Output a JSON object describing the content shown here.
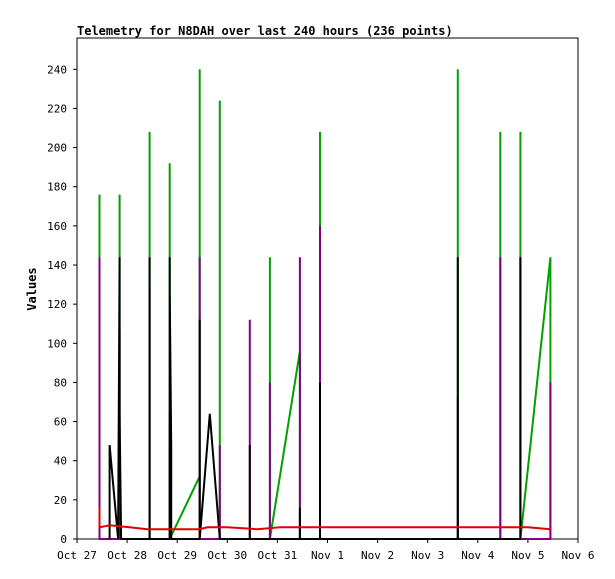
{
  "chart_data": {
    "type": "line",
    "title": "Telemetry for N8DAH over last 240 hours (236 points)",
    "xlabel": "",
    "ylabel": "Values",
    "ylim": [
      0,
      256
    ],
    "xlim": [
      0,
      10
    ],
    "yticks": [
      0,
      20,
      40,
      60,
      80,
      100,
      120,
      140,
      160,
      180,
      200,
      220,
      240
    ],
    "xticks": [
      {
        "label": "Oct 27",
        "x": 0
      },
      {
        "label": "Oct 28",
        "x": 1
      },
      {
        "label": "Oct 29",
        "x": 2
      },
      {
        "label": "Oct 30",
        "x": 3
      },
      {
        "label": "Oct 31",
        "x": 4
      },
      {
        "label": "Nov 1",
        "x": 5
      },
      {
        "label": "Nov 2",
        "x": 6
      },
      {
        "label": "Nov 3",
        "x": 7
      },
      {
        "label": "Nov 4",
        "x": 8
      },
      {
        "label": "Nov 5",
        "x": 9
      },
      {
        "label": "Nov 6",
        "x": 10
      }
    ],
    "grid": false,
    "legend": "none",
    "series": [
      {
        "color": "#00a000",
        "points": [
          [
            0.45,
            0
          ],
          [
            0.45,
            176
          ],
          [
            0.45,
            0
          ],
          [
            0.85,
            0
          ],
          [
            0.85,
            96
          ],
          [
            0.85,
            176
          ],
          [
            0.85,
            0
          ],
          [
            1.45,
            0
          ],
          [
            1.45,
            208
          ],
          [
            1.45,
            0
          ],
          [
            1.85,
            0
          ],
          [
            1.85,
            192
          ],
          [
            1.85,
            0
          ],
          [
            2.45,
            32
          ],
          [
            2.45,
            240
          ],
          [
            2.45,
            0
          ],
          [
            2.85,
            0
          ],
          [
            2.85,
            224
          ],
          [
            2.85,
            0
          ],
          [
            3.85,
            0
          ],
          [
            3.85,
            144
          ],
          [
            3.85,
            0
          ],
          [
            4.45,
            96
          ],
          [
            4.45,
            0
          ],
          [
            4.85,
            0
          ],
          [
            4.85,
            208
          ],
          [
            4.85,
            0
          ],
          [
            7.6,
            0
          ],
          [
            7.6,
            240
          ],
          [
            7.6,
            0
          ],
          [
            8.45,
            0
          ],
          [
            8.45,
            208
          ],
          [
            8.45,
            0
          ],
          [
            8.85,
            0
          ],
          [
            8.85,
            208
          ],
          [
            8.85,
            0
          ],
          [
            9.45,
            144
          ],
          [
            9.45,
            0
          ]
        ]
      },
      {
        "color": "#800080",
        "points": [
          [
            0.45,
            0
          ],
          [
            0.45,
            144
          ],
          [
            0.45,
            0
          ],
          [
            0.85,
            0
          ],
          [
            0.85,
            106
          ],
          [
            0.85,
            0
          ],
          [
            1.45,
            0
          ],
          [
            1.45,
            128
          ],
          [
            1.45,
            0
          ],
          [
            1.85,
            0
          ],
          [
            1.85,
            64
          ],
          [
            1.85,
            0
          ],
          [
            2.45,
            0
          ],
          [
            2.45,
            144
          ],
          [
            2.45,
            0
          ],
          [
            2.85,
            0
          ],
          [
            2.85,
            48
          ],
          [
            2.85,
            0
          ],
          [
            3.45,
            0
          ],
          [
            3.45,
            112
          ],
          [
            3.45,
            0
          ],
          [
            3.85,
            0
          ],
          [
            3.85,
            80
          ],
          [
            3.85,
            0
          ],
          [
            4.45,
            0
          ],
          [
            4.45,
            144
          ],
          [
            4.45,
            0
          ],
          [
            4.85,
            0
          ],
          [
            4.85,
            160
          ],
          [
            4.85,
            0
          ],
          [
            7.6,
            0
          ],
          [
            7.6,
            72
          ],
          [
            7.6,
            0
          ],
          [
            8.45,
            0
          ],
          [
            8.45,
            144
          ],
          [
            8.45,
            0
          ],
          [
            8.85,
            0
          ],
          [
            8.85,
            144
          ],
          [
            8.85,
            0
          ],
          [
            9.45,
            0
          ],
          [
            9.45,
            32
          ],
          [
            9.45,
            80
          ],
          [
            9.45,
            0
          ]
        ]
      },
      {
        "color": "#000000",
        "points": [
          [
            0.65,
            0
          ],
          [
            0.65,
            48
          ],
          [
            0.82,
            0
          ],
          [
            0.85,
            144
          ],
          [
            0.85,
            64
          ],
          [
            0.88,
            0
          ],
          [
            1.45,
            0
          ],
          [
            1.45,
            144
          ],
          [
            1.45,
            0
          ],
          [
            1.85,
            0
          ],
          [
            1.85,
            144
          ],
          [
            1.85,
            128
          ],
          [
            1.88,
            48
          ],
          [
            1.88,
            0
          ],
          [
            2.45,
            0
          ],
          [
            2.45,
            112
          ],
          [
            2.45,
            0
          ],
          [
            2.65,
            64
          ],
          [
            2.85,
            0
          ],
          [
            3.45,
            0
          ],
          [
            3.45,
            48
          ],
          [
            3.45,
            0
          ],
          [
            4.45,
            0
          ],
          [
            4.45,
            16
          ],
          [
            4.45,
            0
          ],
          [
            4.85,
            0
          ],
          [
            4.85,
            80
          ],
          [
            4.85,
            0
          ],
          [
            7.6,
            0
          ],
          [
            7.6,
            144
          ],
          [
            7.6,
            0
          ],
          [
            8.85,
            0
          ],
          [
            8.85,
            72
          ],
          [
            8.85,
            144
          ],
          [
            8.85,
            0
          ]
        ]
      },
      {
        "color": "#e00000",
        "points": [
          [
            0.45,
            16
          ],
          [
            0.45,
            6
          ],
          [
            0.65,
            7
          ],
          [
            1.05,
            6
          ],
          [
            1.4,
            5
          ],
          [
            2.45,
            5
          ],
          [
            2.6,
            6
          ],
          [
            3.0,
            6
          ],
          [
            3.6,
            5
          ],
          [
            4.05,
            6
          ],
          [
            4.8,
            6
          ],
          [
            5.5,
            6
          ],
          [
            7.4,
            6
          ],
          [
            7.55,
            6
          ],
          [
            8.2,
            6
          ],
          [
            8.6,
            6
          ],
          [
            9.0,
            6
          ],
          [
            9.45,
            5
          ]
        ]
      }
    ]
  }
}
